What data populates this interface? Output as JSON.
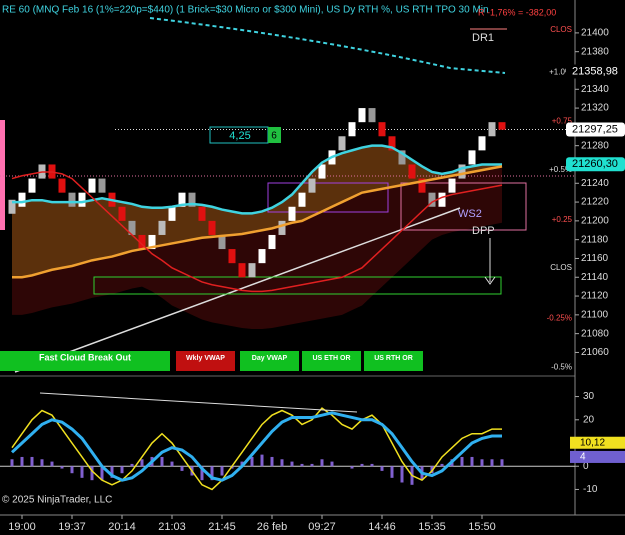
{
  "header": {
    "title": "RE 60 (MNQ Feb 16  (1%=220p=$440) (1 Brick=$30 Micro or $300 Mini), US Dy RTH %, US RTH TPO 30 Min",
    "result": "R -1,76% = -382,00",
    "copyright": "© 2025 NinjaTrader, LLC"
  },
  "annotations": {
    "dr1": "DR1",
    "ws2": "WS2",
    "dpp": "DPP",
    "box_value": "4,25",
    "box_count": "6"
  },
  "buttons": [
    "Fast Cloud Break Out",
    "Wkly VWAP",
    "Day VWAP",
    "US ETH OR",
    "US RTH OR"
  ],
  "chart_data": [
    {
      "type": "renko",
      "categories": [
        null,
        "19:00",
        null,
        null,
        null,
        null,
        "19:37",
        null,
        null,
        null,
        null,
        "20:14",
        null,
        null,
        null,
        null,
        "21:03",
        null,
        null,
        null,
        null,
        "21:45",
        null,
        null,
        null,
        null,
        "26 feb",
        null,
        null,
        null,
        null,
        "09:27",
        null,
        null,
        null,
        null,
        null,
        "14:46",
        null,
        null,
        null,
        null,
        "15:35",
        null,
        null,
        null,
        null,
        "15:50",
        null,
        null
      ],
      "values": [
        21215,
        21230,
        21245,
        21260,
        21245,
        21230,
        21215,
        21230,
        21245,
        21230,
        21215,
        21200,
        21185,
        21170,
        21185,
        21200,
        21215,
        21230,
        21215,
        21200,
        21185,
        21170,
        21155,
        21140,
        21155,
        21170,
        21185,
        21200,
        21215,
        21230,
        21245,
        21260,
        21275,
        21290,
        21305,
        21320,
        21305,
        21290,
        21275,
        21260,
        21245,
        21230,
        21215,
        21230,
        21245,
        21260,
        21275,
        21290,
        21305,
        21297
      ],
      "series": [
        {
          "color": "#3fd3e0",
          "values": [
            21220,
            21220,
            21222,
            21222,
            21220,
            21220,
            21220,
            21220,
            21222,
            21224,
            21222,
            21220,
            21218,
            21215,
            21214,
            21214,
            21215,
            21217,
            21218,
            21217,
            21215,
            21212,
            21210,
            21208,
            21208,
            21210,
            21214,
            21220,
            21228,
            21240,
            21252,
            21262,
            21268,
            21272,
            21275,
            21278,
            21280,
            21280,
            21278,
            21272,
            21265,
            21258,
            21252,
            21250,
            21252,
            21256,
            21258,
            21260,
            21260,
            21260
          ]
        },
        {
          "color": "#f0a030",
          "values": [
            21140,
            21140,
            21142,
            21145,
            21148,
            21150,
            21152,
            21155,
            21158,
            21160,
            21162,
            21165,
            21168,
            21170,
            21172,
            21174,
            21176,
            21178,
            21180,
            21182,
            21183,
            21184,
            21185,
            21186,
            21188,
            21190,
            21192,
            21195,
            21198,
            21200,
            21205,
            21210,
            21215,
            21220,
            21225,
            21230,
            21232,
            21234,
            21236,
            21238,
            21240,
            21242,
            21244,
            21246,
            21248,
            21250,
            21252,
            21254,
            21256,
            21258
          ]
        },
        {
          "color": "#e02020",
          "values": [
            21245,
            21248,
            21250,
            21252,
            21252,
            21250,
            21245,
            21235,
            21225,
            21215,
            21205,
            21195,
            21185,
            21175,
            21165,
            21158,
            21150,
            21145,
            21140,
            21135,
            21132,
            21130,
            21128,
            21126,
            21125,
            21125,
            21126,
            21128,
            21130,
            21132,
            21134,
            21136,
            21138,
            21140,
            21145,
            21150,
            21160,
            21170,
            21180,
            21190,
            21200,
            21210,
            21220,
            21225,
            21228,
            21230,
            21232,
            21234,
            21236,
            21238
          ]
        }
      ],
      "ylim": [
        21036,
        21435
      ],
      "yticks": [
        21060,
        21080,
        21100,
        21120,
        21140,
        21160,
        21180,
        21200,
        21220,
        21240,
        21260,
        21280,
        21300,
        21320,
        21340,
        21360,
        21380,
        21400
      ],
      "levels": [
        {
          "value": 21403,
          "label": "CLOS"
        },
        {
          "value": 21358,
          "label": "+1.0%"
        },
        {
          "value": 21306,
          "label": "+0.75"
        },
        {
          "value": 21254,
          "label": "+0.5%"
        },
        {
          "value": 21201,
          "label": "+0.25"
        },
        {
          "value": 21150,
          "label": "CLOS"
        },
        {
          "value": 21096,
          "label": "-0.25%"
        },
        {
          "value": 21044,
          "label": "-0.5%"
        }
      ],
      "tags": [
        {
          "value": 21358.98,
          "label": "21358,98"
        },
        {
          "value": 21297.25,
          "label": "21297,25"
        },
        {
          "value": 21260.3,
          "label": "21260,30"
        }
      ]
    },
    {
      "type": "oscillator",
      "series": [
        {
          "color": "#f0e020",
          "values": [
            8,
            14,
            20,
            24,
            22,
            16,
            10,
            4,
            -2,
            -6,
            -8,
            -6,
            -2,
            4,
            10,
            14,
            10,
            4,
            -2,
            -8,
            -10,
            -6,
            0,
            6,
            12,
            18,
            22,
            24,
            22,
            18,
            20,
            25,
            22,
            18,
            16,
            20,
            22,
            18,
            10,
            2,
            -4,
            -6,
            -2,
            4,
            8,
            12,
            14,
            14,
            16,
            16
          ]
        },
        {
          "color": "#30b0f0",
          "values": [
            6,
            10,
            14,
            18,
            20,
            19,
            16,
            12,
            6,
            0,
            -4,
            -6,
            -5,
            -2,
            2,
            6,
            8,
            7,
            4,
            -1,
            -5,
            -6,
            -4,
            0,
            5,
            10,
            15,
            19,
            21,
            21,
            21,
            22,
            23,
            22,
            21,
            20,
            20,
            18,
            14,
            8,
            2,
            -3,
            -4,
            -2,
            2,
            6,
            10,
            12,
            13,
            13
          ]
        }
      ],
      "histogram": [
        3,
        4,
        4,
        3,
        2,
        -1,
        -3,
        -5,
        -6,
        -6,
        -5,
        -3,
        1,
        3,
        4,
        4,
        2,
        -2,
        -4,
        -6,
        -6,
        -4,
        -1,
        2,
        4,
        5,
        4,
        3,
        2,
        1,
        1,
        3,
        2,
        0,
        -1,
        1,
        1,
        -2,
        -5,
        -7,
        -8,
        -6,
        -3,
        1,
        3,
        4,
        4,
        3,
        3,
        3
      ],
      "ylim": [
        -21,
        38
      ],
      "yticks": [
        30,
        20,
        10,
        0,
        -10
      ],
      "tags": [
        {
          "value": 10.12,
          "label": "10,12"
        },
        {
          "value": 4,
          "label": "4"
        }
      ]
    }
  ]
}
